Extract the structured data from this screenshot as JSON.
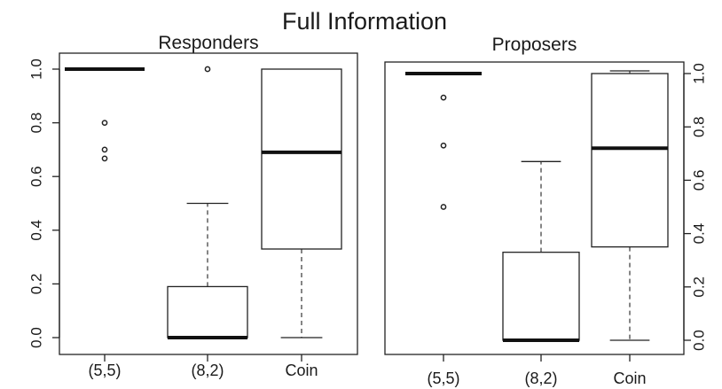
{
  "title": "Full Information",
  "chart_data": [
    {
      "type": "box",
      "title": "Responders",
      "categories": [
        "(5,5)",
        "(8,2)",
        "Coin"
      ],
      "ylim": [
        0,
        1
      ],
      "yticks": [
        "0.0",
        "0.2",
        "0.4",
        "0.6",
        "0.8",
        "1.0"
      ],
      "ytick_values": [
        0,
        0.2,
        0.4,
        0.6,
        0.8,
        1.0
      ],
      "axis_side": "left",
      "boxes": [
        {
          "q1": 1.0,
          "median": 1.0,
          "q3": 1.0,
          "whisker_low": 1.0,
          "whisker_high": 1.0,
          "outliers": [
            0.8,
            0.7,
            0.667
          ]
        },
        {
          "q1": 0.0,
          "median": 0.0,
          "q3": 0.19,
          "whisker_low": 0.0,
          "whisker_high": 0.5,
          "outliers": [
            1.0
          ]
        },
        {
          "q1": 0.33,
          "median": 0.69,
          "q3": 1.0,
          "whisker_low": 0.0,
          "whisker_high": 1.0,
          "outliers": []
        }
      ]
    },
    {
      "type": "box",
      "title": "Proposers",
      "categories": [
        "(5,5)",
        "(8,2)",
        "Coin"
      ],
      "ylim": [
        0,
        1
      ],
      "yticks": [
        "0.0",
        "0.2",
        "0.4",
        "0.6",
        "0.8",
        "1.0"
      ],
      "ytick_values": [
        0,
        0.2,
        0.4,
        0.6,
        0.8,
        1.0
      ],
      "axis_side": "right",
      "boxes": [
        {
          "q1": 1.0,
          "median": 1.0,
          "q3": 1.0,
          "whisker_low": 1.0,
          "whisker_high": 1.0,
          "outliers": [
            0.91,
            0.73,
            0.5
          ]
        },
        {
          "q1": 0.0,
          "median": 0.0,
          "q3": 0.33,
          "whisker_low": 0.0,
          "whisker_high": 0.67,
          "outliers": []
        },
        {
          "q1": 0.35,
          "median": 0.72,
          "q3": 1.0,
          "whisker_low": 0.0,
          "whisker_high": 1.01,
          "outliers": []
        }
      ]
    }
  ]
}
